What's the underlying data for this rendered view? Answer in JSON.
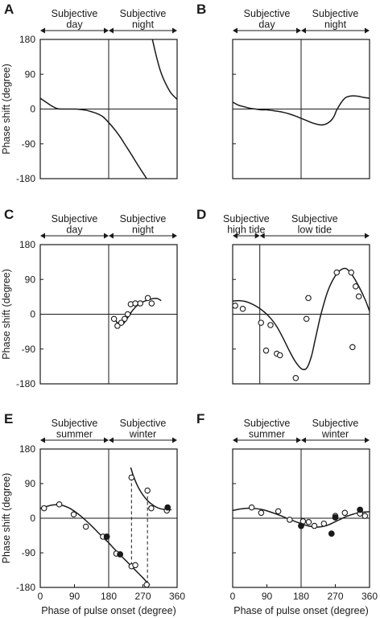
{
  "chart_data": [
    {
      "panel": "A",
      "type": "line",
      "regions": [
        "Subjective\nday",
        "Subjective\nnight"
      ],
      "region_split": 180,
      "ylabel": "Phase shift (degree)",
      "xlabel": "",
      "xlim": [
        0,
        360
      ],
      "ylim": [
        -180,
        180
      ],
      "xticks": [],
      "yticks": [
        "180",
        "90",
        "0",
        "-90",
        "-180"
      ],
      "curves": [
        {
          "x": [
            0,
            15,
            30,
            45,
            60,
            75,
            90,
            105,
            120,
            135,
            150,
            165,
            180,
            195,
            210,
            225,
            240,
            255,
            270,
            280
          ],
          "y": [
            28,
            18,
            8,
            1,
            0,
            0,
            0,
            -1,
            -3,
            -7,
            -12,
            -20,
            -35,
            -52,
            -72,
            -95,
            -118,
            -142,
            -165,
            -180
          ]
        },
        {
          "x": [
            295,
            305,
            315,
            325,
            335,
            345,
            360
          ],
          "y": [
            180,
            138,
            102,
            76,
            56,
            40,
            25
          ]
        }
      ],
      "points_open": [],
      "points_filled": [],
      "dashed": []
    },
    {
      "panel": "B",
      "type": "line",
      "regions": [
        "Subjective\nday",
        "Subjective\nnight"
      ],
      "region_split": 180,
      "ylabel": "",
      "xlabel": "",
      "xlim": [
        0,
        360
      ],
      "ylim": [
        -180,
        180
      ],
      "xticks": [],
      "yticks": [],
      "curves": [
        {
          "x": [
            0,
            15,
            30,
            45,
            60,
            75,
            90,
            105,
            120,
            135,
            150,
            165,
            180,
            195,
            210,
            225,
            235,
            245,
            255,
            262,
            268,
            272,
            278,
            285,
            292,
            300,
            315,
            330,
            345,
            360
          ],
          "y": [
            18,
            10,
            6,
            2,
            0,
            -2,
            -2,
            -4,
            -6,
            -9,
            -13,
            -18,
            -24,
            -30,
            -36,
            -40,
            -41,
            -39,
            -33,
            -26,
            -16,
            -6,
            5,
            16,
            25,
            31,
            34,
            33,
            30,
            28
          ]
        }
      ],
      "points_open": [],
      "points_filled": [],
      "dashed": []
    },
    {
      "panel": "C",
      "type": "scatter",
      "regions": [
        "Subjective\nday",
        "Subjective\nnight"
      ],
      "region_split": 180,
      "ylabel": "Phase shift (degree)",
      "xlabel": "",
      "xlim": [
        0,
        360
      ],
      "ylim": [
        -180,
        180
      ],
      "xticks": [],
      "yticks": [
        "180",
        "90",
        "0",
        "-90",
        "-180"
      ],
      "curves": [
        {
          "x": [
            195,
            203,
            210,
            218,
            225,
            232,
            240,
            250,
            262,
            275,
            288,
            300,
            310,
            318
          ],
          "y": [
            -12,
            -22,
            -28,
            -25,
            -17,
            -6,
            6,
            18,
            28,
            34,
            38,
            41,
            40,
            35
          ]
        }
      ],
      "points_open": [
        [
          194,
          -12
        ],
        [
          203,
          -30
        ],
        [
          213,
          -22
        ],
        [
          222,
          -12
        ],
        [
          230,
          0
        ],
        [
          238,
          26
        ],
        [
          250,
          28
        ],
        [
          263,
          28
        ],
        [
          283,
          42
        ],
        [
          293,
          28
        ]
      ],
      "points_filled": [],
      "dashed": []
    },
    {
      "panel": "D",
      "type": "scatter",
      "regions": [
        "Subjective\nhigh tide",
        "Subjective\nlow tide"
      ],
      "region_split": 43,
      "ylabel": "",
      "xlabel": "",
      "xlim": [
        0,
        217
      ],
      "ylim": [
        -180,
        180
      ],
      "xticks": [],
      "yticks": [],
      "curves": [
        {
          "x": [
            0,
            10,
            20,
            30,
            40,
            50,
            60,
            70,
            80,
            90,
            100,
            110,
            118,
            125,
            130,
            135,
            140,
            150,
            160,
            170,
            180,
            190,
            200,
            210,
            217
          ],
          "y": [
            34,
            35,
            33,
            27,
            18,
            6,
            -10,
            -32,
            -62,
            -95,
            -124,
            -142,
            -138,
            -108,
            -72,
            -35,
            0,
            56,
            92,
            113,
            118,
            100,
            72,
            38,
            8
          ]
        }
      ],
      "points_open": [
        [
          4,
          22
        ],
        [
          16,
          14
        ],
        [
          45,
          -22
        ],
        [
          53,
          -94
        ],
        [
          60,
          -28
        ],
        [
          70,
          -102
        ],
        [
          75,
          -106
        ],
        [
          100,
          -165
        ],
        [
          120,
          42
        ],
        [
          117,
          -12
        ],
        [
          165,
          108
        ],
        [
          188,
          108
        ],
        [
          195,
          72
        ],
        [
          200,
          46
        ],
        [
          190,
          -85
        ]
      ],
      "points_filled": [],
      "dashed": []
    },
    {
      "panel": "E",
      "type": "scatter",
      "regions": [
        "Subjective\nsummer",
        "Subjective\nwinter"
      ],
      "region_split": 180,
      "ylabel": "Phase shift (degree)",
      "xlabel": "Phase of pulse onset (degree)",
      "xlim": [
        0,
        360
      ],
      "ylim": [
        -180,
        180
      ],
      "xticks": [
        "0",
        "90",
        "180",
        "270",
        "360"
      ],
      "yticks": [
        "180",
        "90",
        "0",
        "-90",
        "-180"
      ],
      "curves": [
        {
          "x": [
            0,
            15,
            30,
            45,
            60,
            75,
            90,
            105,
            120,
            135,
            150,
            165,
            180,
            195,
            210,
            225,
            240,
            255,
            270,
            280,
            288
          ],
          "y": [
            25,
            30,
            34,
            35,
            33,
            27,
            18,
            7,
            -6,
            -20,
            -35,
            -50,
            -64,
            -80,
            -95,
            -110,
            -125,
            -140,
            -155,
            -166,
            -174
          ]
        },
        {
          "x": [
            238,
            245,
            255,
            265,
            275,
            285,
            295,
            305,
            315,
            325,
            335,
            345
          ],
          "y": [
            132,
            110,
            86,
            68,
            54,
            43,
            35,
            29,
            25,
            23,
            22,
            22
          ]
        }
      ],
      "points_open": [
        [
          10,
          26
        ],
        [
          50,
          36
        ],
        [
          88,
          10
        ],
        [
          120,
          -22
        ],
        [
          165,
          -48
        ],
        [
          200,
          -92
        ],
        [
          240,
          106
        ],
        [
          240,
          -125
        ],
        [
          250,
          -122
        ],
        [
          280,
          -173
        ],
        [
          282,
          72
        ],
        [
          292,
          26
        ],
        [
          333,
          20
        ]
      ],
      "points_filled": [
        [
          175,
          -48
        ],
        [
          210,
          -94
        ],
        [
          335,
          28
        ]
      ],
      "dashed": [
        [
          240,
          106,
          240,
          -125
        ],
        [
          282,
          72,
          282,
          -173
        ]
      ]
    },
    {
      "panel": "F",
      "type": "scatter",
      "regions": [
        "Subjective\nsummer",
        "Subjective\nwinter"
      ],
      "region_split": 180,
      "ylabel": "",
      "xlabel": "Phase of pulse onset (degree)",
      "xlim": [
        0,
        360
      ],
      "ylim": [
        -180,
        180
      ],
      "xticks": [
        "0",
        "90",
        "180",
        "270",
        "360"
      ],
      "yticks": [],
      "curves": [
        {
          "x": [
            0,
            20,
            40,
            60,
            80,
            100,
            120,
            140,
            160,
            180,
            195,
            210,
            225,
            240,
            255,
            270,
            285,
            300,
            315,
            330,
            345,
            360
          ],
          "y": [
            20,
            24,
            26,
            25,
            22,
            16,
            9,
            1,
            -7,
            -14,
            -19,
            -22,
            -23,
            -21,
            -16,
            -9,
            -2,
            5,
            10,
            14,
            16,
            17
          ]
        }
      ],
      "points_open": [
        [
          50,
          28
        ],
        [
          75,
          14
        ],
        [
          120,
          18
        ],
        [
          150,
          -4
        ],
        [
          185,
          -8
        ],
        [
          200,
          -10
        ],
        [
          215,
          -20
        ],
        [
          240,
          -14
        ],
        [
          270,
          6
        ],
        [
          295,
          14
        ],
        [
          335,
          12
        ],
        [
          348,
          6
        ]
      ],
      "points_filled": [
        [
          180,
          -20
        ],
        [
          260,
          -40
        ],
        [
          270,
          2
        ],
        [
          335,
          22
        ]
      ],
      "dashed": []
    }
  ]
}
